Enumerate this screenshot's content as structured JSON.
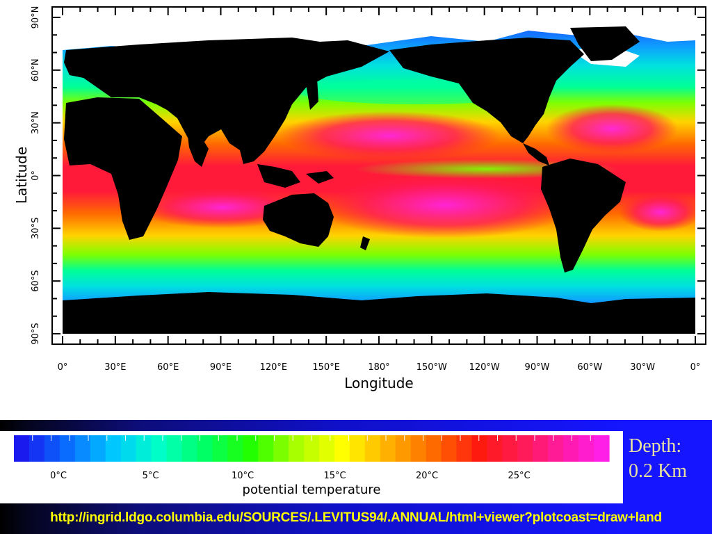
{
  "map": {
    "axes": {
      "xlabel": "Longitude",
      "ylabel": "Latitude",
      "lon_ticks": [
        "0°",
        "30°E",
        "60°E",
        "90°E",
        "120°E",
        "150°E",
        "180°",
        "150°W",
        "120°W",
        "90°W",
        "60°W",
        "30°W",
        "0°"
      ],
      "lat_ticks": [
        "90°N",
        "60°N",
        "30°N",
        "0°",
        "30°S",
        "60°S",
        "90°S"
      ]
    },
    "variable": "potential temperature",
    "land_color": "#000000",
    "missing_color": "#ffffff"
  },
  "colorbar": {
    "title": "potential temperature",
    "labels": [
      "0°C",
      "5°C",
      "10°C",
      "15°C",
      "20°C",
      "25°C"
    ],
    "colors": [
      "#1a1aee",
      "#0a6cff",
      "#00c8ff",
      "#00ffc8",
      "#00ff64",
      "#22ff00",
      "#a8ff00",
      "#ffff00",
      "#ffb000",
      "#ff6a00",
      "#ff1a10",
      "#ff1a5a",
      "#ff1ab4",
      "#ff22ff"
    ]
  },
  "depth": {
    "label": "Depth:",
    "value": "0.2 Km"
  },
  "footer": {
    "url": "http://ingrid.ldgo.columbia.edu/SOURCES/.LEVITUS94/.ANNUAL/html+viewer?plotcoast=draw+land"
  },
  "colors": {
    "background_dark": "#000000",
    "background_blue": "#1515ff",
    "url_text": "#ffff00",
    "depth_text": "#e9e1a0"
  }
}
